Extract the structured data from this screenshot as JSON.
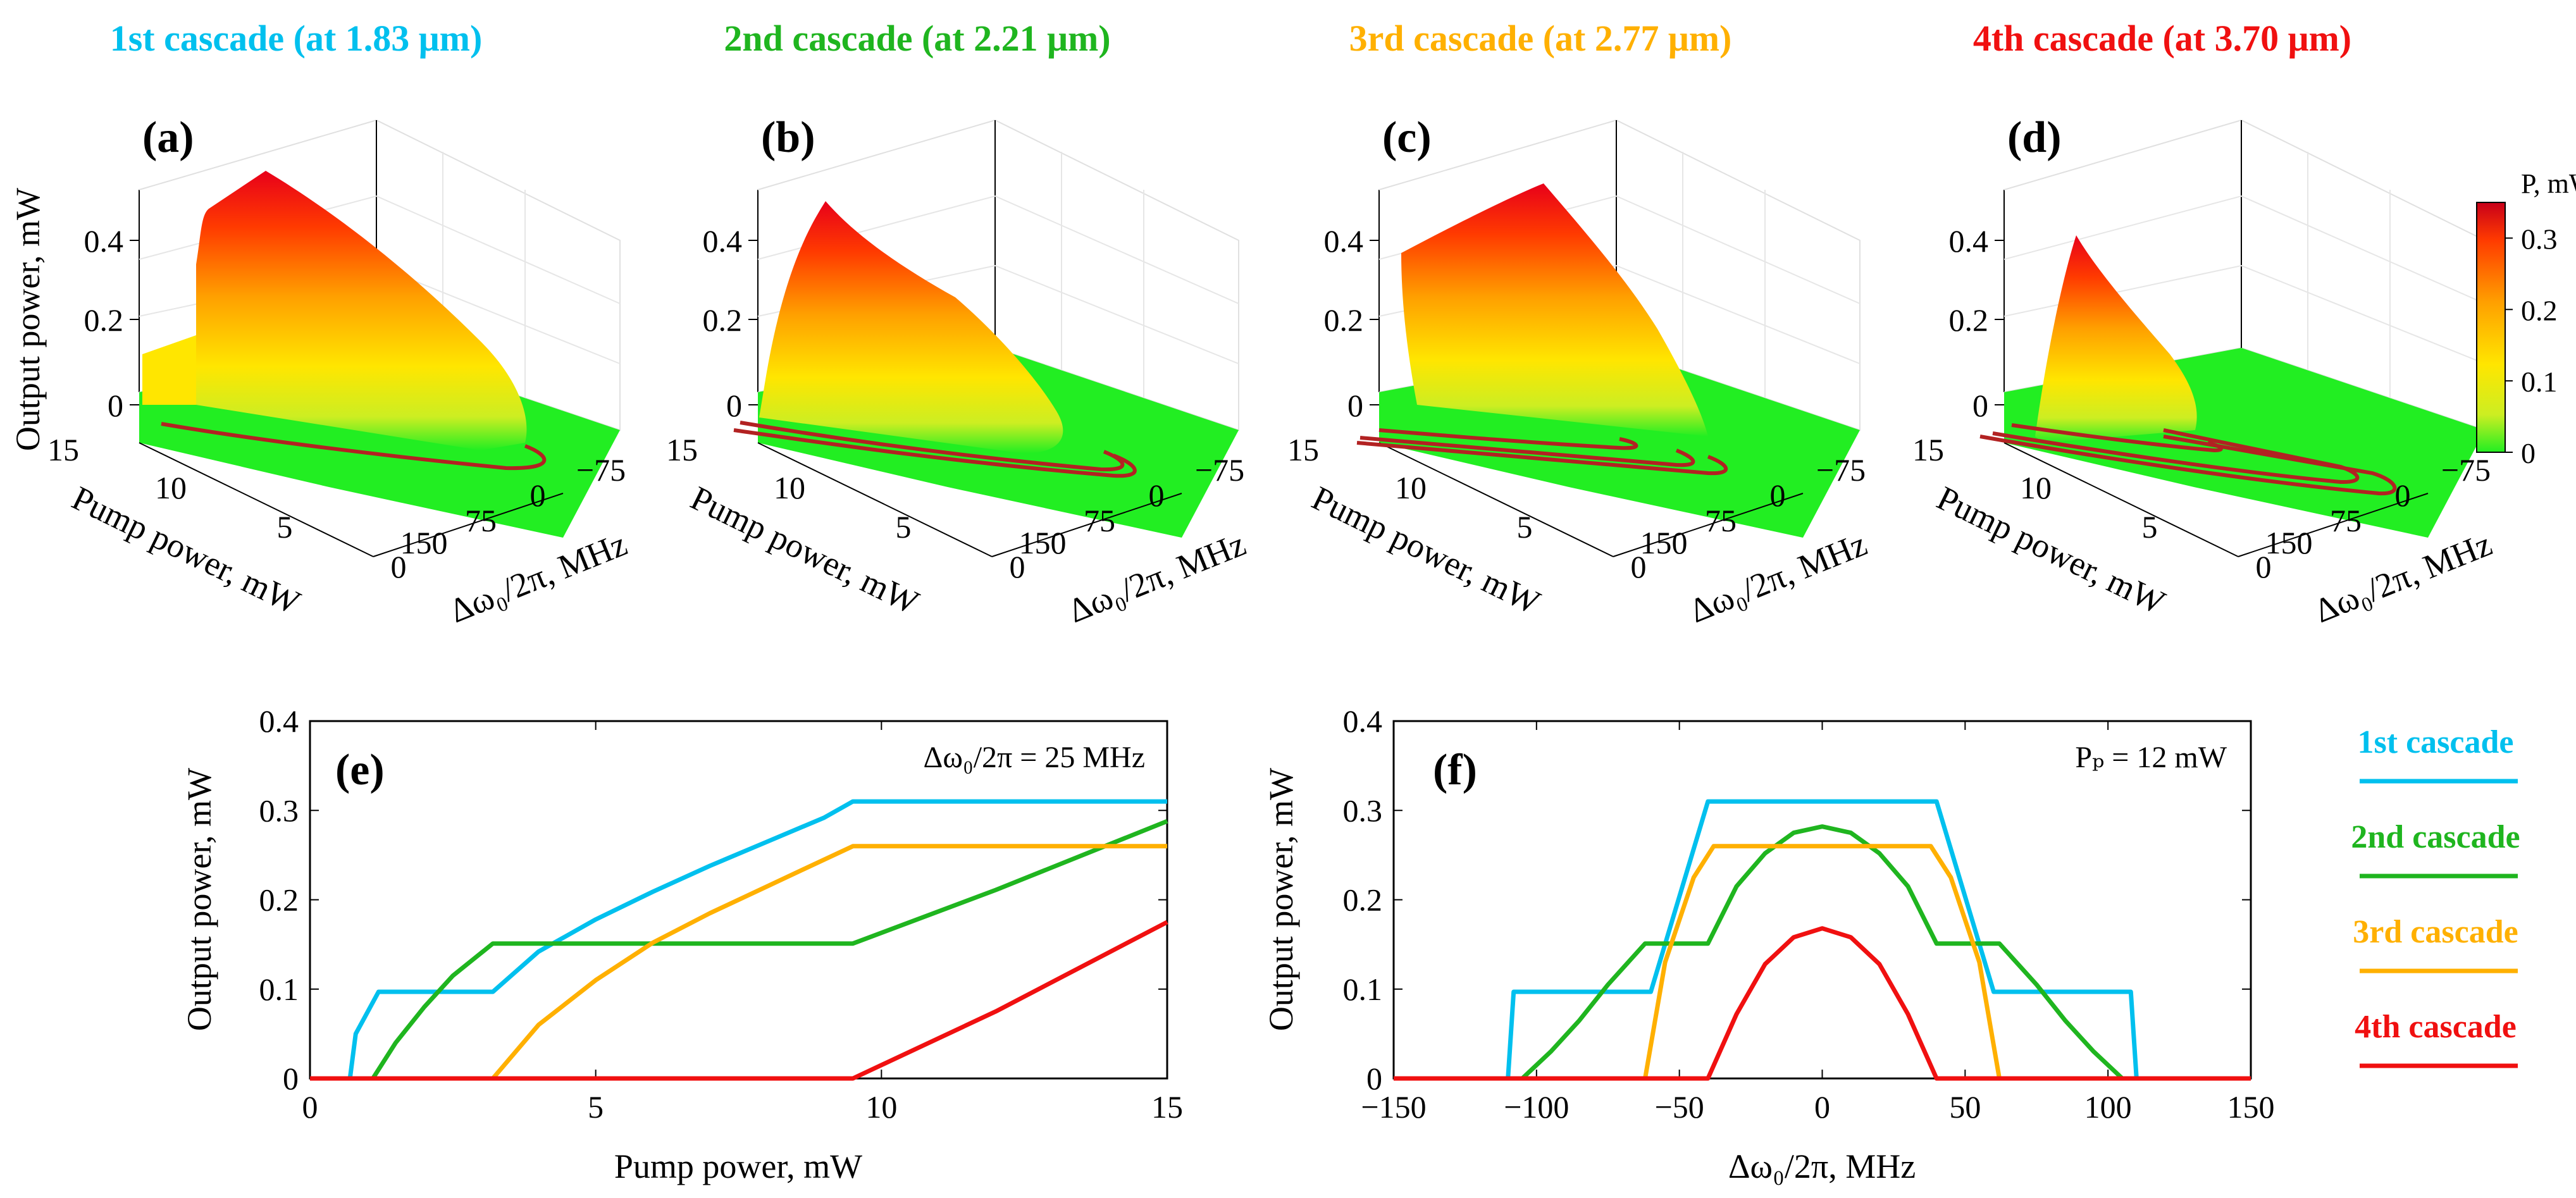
{
  "figure": {
    "colors": {
      "cascade1": "#00C0EE",
      "cascade2": "#1FB51F",
      "cascade3": "#FFB000",
      "cascade4": "#F01010",
      "contour": "#B22222",
      "floor": "#22EE22",
      "axis": "#000000",
      "grid": "#d9d9d9"
    },
    "cascade_titles": [
      "1st cascade (at 1.83 μm)",
      "2nd cascade (at 2.21 μm)",
      "3rd cascade (at 2.77 μm)",
      "4th cascade (at 3.70 μm)"
    ],
    "colorbar": {
      "title": "P, mW",
      "ticks": [
        "0",
        "0.1",
        "0.2",
        "0.3"
      ],
      "range": [
        0,
        0.35
      ]
    }
  },
  "chart_data": [
    {
      "panel": "(a)",
      "type": "surface3d",
      "title": "1st cascade (at 1.83 μm)",
      "xlabel": "Pump power, mW",
      "ylabel": "Δω₀/2π, MHz",
      "zlabel": "Output power, mW",
      "x_ticks": [
        "15",
        "10",
        "5",
        "0"
      ],
      "y_ticks": [
        "150",
        "75",
        "0",
        "−75"
      ],
      "z_ticks": [
        "0",
        "0.2",
        "0.4"
      ],
      "peak_power_mW": 0.31
    },
    {
      "panel": "(b)",
      "type": "surface3d",
      "title": "2nd cascade (at 2.21 μm)",
      "xlabel": "Pump power, mW",
      "ylabel": "Δω₀/2π, MHz",
      "zlabel": "",
      "x_ticks": [
        "15",
        "10",
        "5",
        "0"
      ],
      "y_ticks": [
        "150",
        "75",
        "0",
        "−75"
      ],
      "z_ticks": [
        "0",
        "0.2",
        "0.4"
      ],
      "peak_power_mW": 0.35
    },
    {
      "panel": "(c)",
      "type": "surface3d",
      "title": "3rd cascade (at 2.77 μm)",
      "xlabel": "Pump power, mW",
      "ylabel": "Δω₀/2π, MHz",
      "zlabel": "",
      "x_ticks": [
        "15",
        "10",
        "5",
        "0"
      ],
      "y_ticks": [
        "150",
        "75",
        "0",
        "−75"
      ],
      "z_ticks": [
        "0",
        "0.2",
        "0.4"
      ],
      "peak_power_mW": 0.26
    },
    {
      "panel": "(d)",
      "type": "surface3d",
      "title": "4th cascade (at 3.70 μm)",
      "xlabel": "Pump power, mW",
      "ylabel": "Δω₀/2π, MHz",
      "zlabel": "",
      "x_ticks": [
        "15",
        "10",
        "5",
        "0"
      ],
      "y_ticks": [
        "150",
        "75",
        "0",
        "−75"
      ],
      "z_ticks": [
        "0",
        "0.2",
        "0.4"
      ],
      "peak_power_mW": 0.33
    },
    {
      "panel": "(e)",
      "type": "line",
      "annotation": "Δω₀/2π = 25 MHz",
      "xlabel": "Pump power, mW",
      "ylabel": "Output power, mW",
      "xlim": [
        0,
        15
      ],
      "ylim": [
        0,
        0.4
      ],
      "x_ticks": [
        "0",
        "5",
        "10",
        "15"
      ],
      "y_ticks": [
        "0",
        "0.1",
        "0.2",
        "0.3",
        "0.4"
      ],
      "series": [
        {
          "name": "1st cascade",
          "x": [
            0,
            0.7,
            0.8,
            1.2,
            3.2,
            4,
            5,
            6,
            7,
            8,
            9,
            9.5,
            15
          ],
          "y": [
            0,
            0,
            0.05,
            0.097,
            0.097,
            0.142,
            0.178,
            0.209,
            0.238,
            0.265,
            0.292,
            0.31,
            0.31
          ]
        },
        {
          "name": "2nd cascade",
          "x": [
            0,
            1.1,
            1.5,
            2,
            2.5,
            3.2,
            9.5,
            12,
            15
          ],
          "y": [
            0,
            0,
            0.04,
            0.08,
            0.115,
            0.151,
            0.151,
            0.211,
            0.288
          ]
        },
        {
          "name": "3rd cascade",
          "x": [
            0,
            3.2,
            4,
            5,
            6,
            7,
            8,
            9,
            9.5,
            15
          ],
          "y": [
            0,
            0,
            0.06,
            0.11,
            0.152,
            0.185,
            0.215,
            0.245,
            0.26,
            0.26
          ]
        },
        {
          "name": "4th cascade",
          "x": [
            0,
            9.5,
            12,
            15
          ],
          "y": [
            0,
            0,
            0.075,
            0.175
          ]
        }
      ]
    },
    {
      "panel": "(f)",
      "type": "line",
      "annotation": "Pₚ = 12 mW",
      "xlabel": "Δω₀/2π, MHz",
      "ylabel": "Output power, mW",
      "xlim": [
        -150,
        150
      ],
      "ylim": [
        0,
        0.4
      ],
      "x_ticks": [
        "−150",
        "−100",
        "−50",
        "0",
        "50",
        "100",
        "150"
      ],
      "y_ticks": [
        "0",
        "0.1",
        "0.2",
        "0.3",
        "0.4"
      ],
      "series": [
        {
          "name": "1st cascade",
          "x": [
            -150,
            -110,
            -108,
            -60,
            -40,
            40,
            60,
            108,
            110,
            150
          ],
          "y": [
            0,
            0,
            0.097,
            0.097,
            0.31,
            0.31,
            0.097,
            0.097,
            0,
            0
          ]
        },
        {
          "name": "2nd cascade",
          "x": [
            -150,
            -105,
            -95,
            -85,
            -75,
            -62,
            -40,
            -30,
            -20,
            -10,
            0,
            10,
            20,
            30,
            40,
            62,
            75,
            85,
            95,
            105,
            150
          ],
          "y": [
            0,
            0,
            0.03,
            0.065,
            0.105,
            0.151,
            0.151,
            0.215,
            0.252,
            0.275,
            0.282,
            0.275,
            0.252,
            0.215,
            0.151,
            0.151,
            0.105,
            0.065,
            0.03,
            0,
            0
          ]
        },
        {
          "name": "3rd cascade",
          "x": [
            -150,
            -62,
            -55,
            -45,
            -38,
            38,
            45,
            55,
            62,
            150
          ],
          "y": [
            0,
            0,
            0.13,
            0.225,
            0.26,
            0.26,
            0.225,
            0.13,
            0,
            0
          ]
        },
        {
          "name": "4th cascade",
          "x": [
            -150,
            -40,
            -30,
            -20,
            -10,
            0,
            10,
            20,
            30,
            40,
            150
          ],
          "y": [
            0,
            0,
            0.072,
            0.128,
            0.158,
            0.168,
            0.158,
            0.128,
            0.072,
            0,
            0
          ]
        }
      ]
    }
  ],
  "legend": [
    {
      "label": "1st cascade",
      "color": "#00C0EE"
    },
    {
      "label": "2nd cascade",
      "color": "#1FB51F"
    },
    {
      "label": "3rd cascade",
      "color": "#FFB000"
    },
    {
      "label": "4th cascade",
      "color": "#F01010"
    }
  ]
}
